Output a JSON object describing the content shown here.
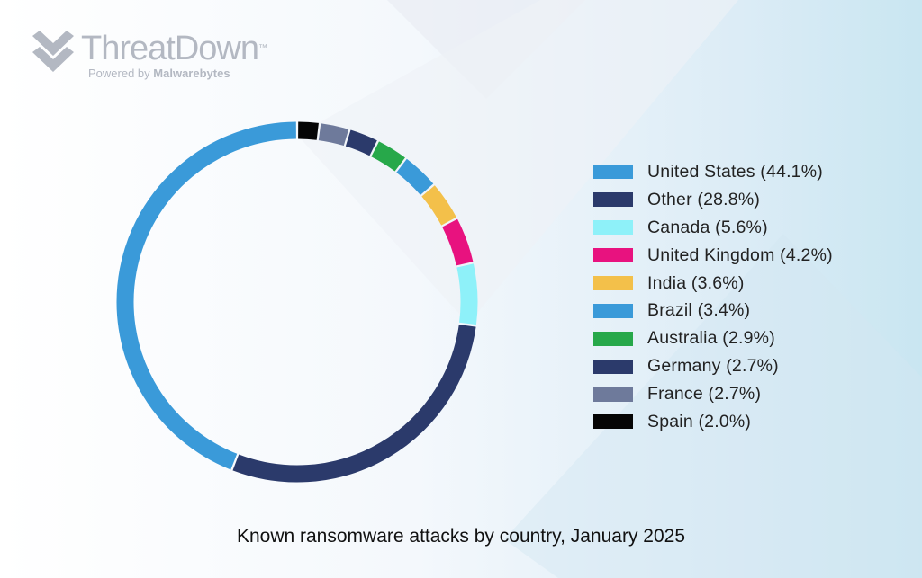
{
  "brand": {
    "name": "ThreatDown",
    "trademark": "™",
    "powered_by": "Powered by",
    "parent": "Malwarebytes",
    "logo_icon": "chevron-stack-icon",
    "logo_color": "#b3b8c2"
  },
  "chart_data": {
    "type": "pie",
    "style": "donut",
    "title": "Known ransomware attacks by country, January 2025",
    "legend_position": "right",
    "slices": [
      {
        "label": "United States (44.1%)",
        "name": "United States",
        "value": 44.1,
        "color": "#3a9ad9"
      },
      {
        "label": "Other (28.8%)",
        "name": "Other",
        "value": 28.8,
        "color": "#2b3a6b"
      },
      {
        "label": "Canada (5.6%)",
        "name": "Canada",
        "value": 5.6,
        "color": "#8ef1f9"
      },
      {
        "label": "United Kingdom (4.2%)",
        "name": "United Kingdom",
        "value": 4.2,
        "color": "#e8127f"
      },
      {
        "label": "India (3.6%)",
        "name": "India",
        "value": 3.6,
        "color": "#f3c04a"
      },
      {
        "label": "Brazil (3.4%)",
        "name": "Brazil",
        "value": 3.4,
        "color": "#3a9ad9"
      },
      {
        "label": "Australia (2.9%)",
        "name": "Australia",
        "value": 2.9,
        "color": "#27a84a"
      },
      {
        "label": "Germany (2.7%)",
        "name": "Germany",
        "value": 2.7,
        "color": "#2b3a6b"
      },
      {
        "label": "France (2.7%)",
        "name": "France",
        "value": 2.7,
        "color": "#6e7a9b"
      },
      {
        "label": "Spain (2.0%)",
        "name": "Spain",
        "value": 2.0,
        "color": "#050505"
      }
    ]
  }
}
